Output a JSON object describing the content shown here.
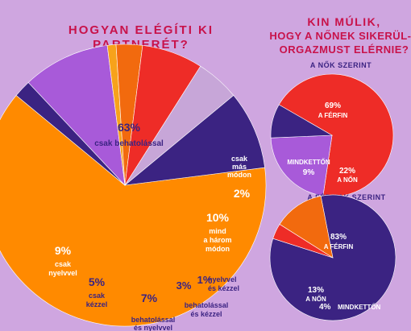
{
  "colors": {
    "background": "#cfa6e0",
    "title": "#c8124a",
    "orange": "#ff8a00",
    "navy": "#3b2382",
    "violet": "#a85ad9",
    "lilac": "#c7a6d8",
    "red": "#ee2c27",
    "dark_orange": "#f26a0e",
    "amber": "#f7a21b",
    "label_white": "#ffffff",
    "label_dark": "#3b2382"
  },
  "chart_data": [
    {
      "type": "pie",
      "title": "HOGYAN ELÉGÍTI KI PARTNERÉT?",
      "title_lines": [
        "HOGYAN ELÉGÍTI KI",
        "PARTNERÉT?"
      ],
      "slices": [
        {
          "value": 63,
          "pct": "63%",
          "label": "csak behatolással",
          "label_lines": [
            "csak behatolással"
          ],
          "color": "#ff8a00"
        },
        {
          "value": 2,
          "pct": "2%",
          "label": "csak más módon",
          "label_lines": [
            "csak",
            "más",
            "módon"
          ],
          "color": "#3b2382"
        },
        {
          "value": 10,
          "pct": "10%",
          "label": "mind a három módon",
          "label_lines": [
            "mind",
            "a három",
            "módon"
          ],
          "color": "#a85ad9"
        },
        {
          "value": 1,
          "pct": "1%",
          "label": "nyelvvel és kézzel",
          "label_lines": [
            "nyelvvel",
            "és kézzel"
          ],
          "color": "#f7a21b"
        },
        {
          "value": 3,
          "pct": "3%",
          "label": "behatolással és kézzel",
          "label_lines": [
            "behatolással",
            "és kézzel"
          ],
          "color": "#f26a0e"
        },
        {
          "value": 7,
          "pct": "7%",
          "label": "behatolással és nyelvvel",
          "label_lines": [
            "behatolással",
            "és nyelvvel"
          ],
          "color": "#ee2c27"
        },
        {
          "value": 5,
          "pct": "5%",
          "label": "csak kézzel",
          "label_lines": [
            "csak",
            "kézzel"
          ],
          "color": "#c7a6d8"
        },
        {
          "value": 9,
          "pct": "9%",
          "label": "csak nyelvvel",
          "label_lines": [
            "csak",
            "nyelvvel"
          ],
          "color": "#3b2382"
        }
      ]
    },
    {
      "type": "pie",
      "title": "KIN MÚLIK, HOGY A NŐNEK SIKERÜL-E ORGAZMUST ELÉRNIE?",
      "title_lines": [
        "KIN MÚLIK,",
        "HOGY A NŐNEK SIKERÜL-E",
        "ORGAZMUST ELÉRNIE?"
      ],
      "subtitle": "A NŐK SZERINT",
      "slices": [
        {
          "value": 69,
          "pct": "69%",
          "label": "A FÉRFIN",
          "color": "#ee2c27"
        },
        {
          "value": 22,
          "pct": "22%",
          "label": "A NŐN",
          "color": "#a85ad9"
        },
        {
          "value": 9,
          "pct": "9%",
          "label": "MINDKETTŐN",
          "color": "#3b2382"
        }
      ]
    },
    {
      "type": "pie",
      "subtitle": "A FÉRFIAK SZERINT",
      "slices": [
        {
          "value": 83,
          "pct": "83%",
          "label": "A FÉRFIN",
          "color": "#3b2382"
        },
        {
          "value": 4,
          "pct": "4%",
          "label": "MINDKETTŐN",
          "color": "#ee2c27"
        },
        {
          "value": 13,
          "pct": "13%",
          "label": "A NŐN",
          "color": "#f26a0e"
        }
      ]
    }
  ]
}
